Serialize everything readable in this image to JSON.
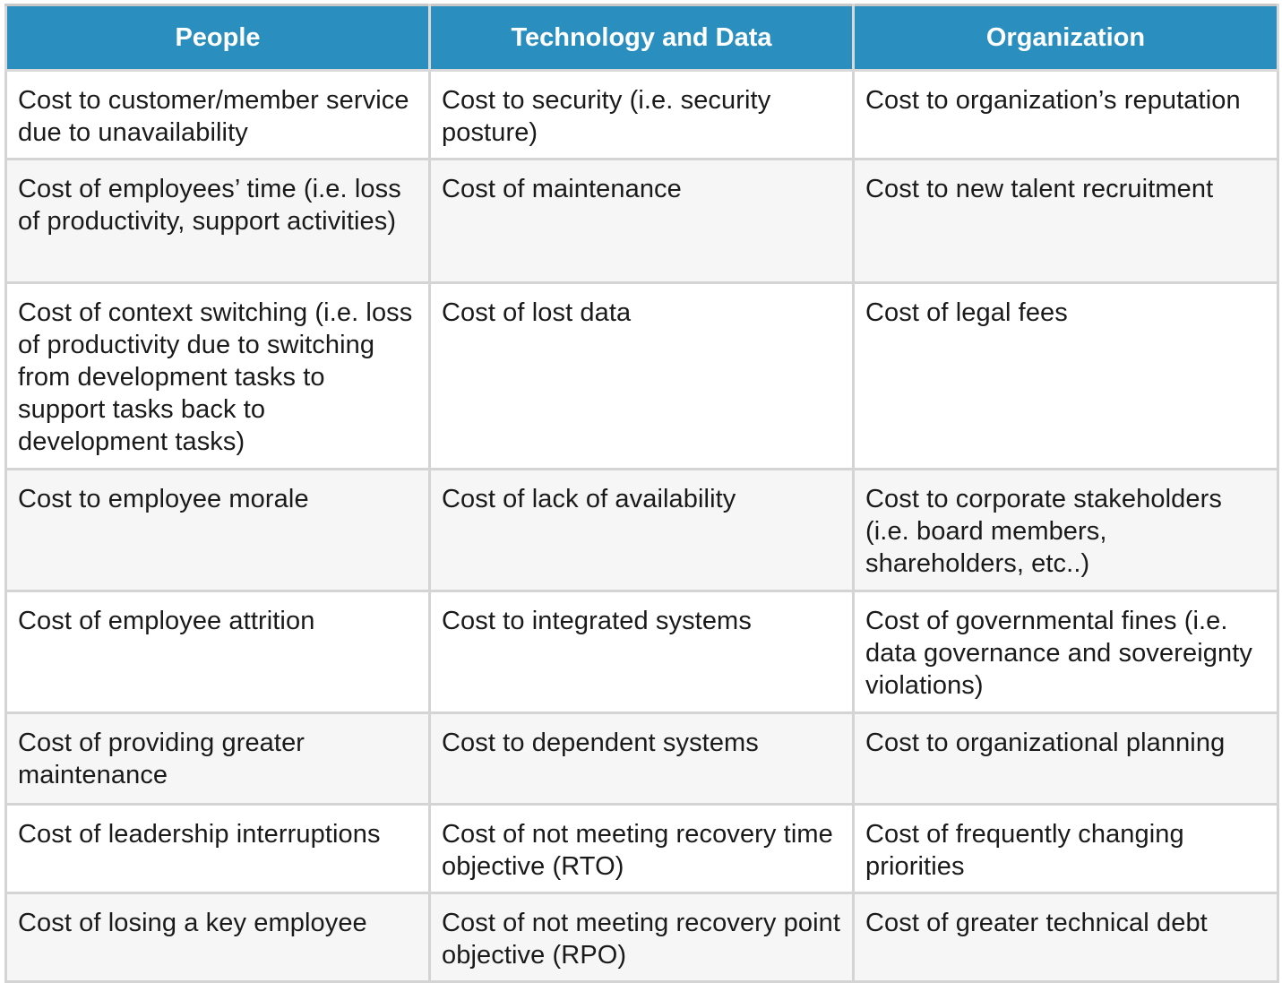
{
  "table": {
    "headers": [
      "People",
      "Technology and Data",
      "Organization"
    ],
    "rows": [
      [
        "Cost to customer/member service due to unavailability",
        "Cost to security (i.e. security posture)",
        "Cost to organization’s reputation"
      ],
      [
        "Cost of employees’ time (i.e. loss of productivity, support activities)",
        "Cost of maintenance",
        "Cost to new talent recruitment"
      ],
      [
        "Cost of context switching (i.e. loss of productivity due to switching from development tasks to support tasks back to development tasks)",
        "Cost of lost data",
        "Cost of legal fees"
      ],
      [
        "Cost to employee morale",
        "Cost of lack of availability",
        "Cost to corporate stakeholders (i.e. board members, shareholders, etc..)"
      ],
      [
        "Cost of employee attrition",
        "Cost to integrated systems",
        "Cost of governmental fines (i.e. data governance and sovereignty violations)"
      ],
      [
        "Cost of providing greater maintenance",
        "Cost to dependent systems",
        "Cost to organizational planning"
      ],
      [
        "Cost of leadership interruptions",
        "Cost of not meeting recovery time objective (RTO)",
        "Cost of frequently changing priorities"
      ],
      [
        "Cost of losing a key employee",
        "Cost of not meeting recovery point objective (RPO)",
        "Cost of greater technical debt"
      ]
    ]
  },
  "colors": {
    "header_bg": "#2a8fbf",
    "header_text": "#ffffff",
    "border": "#d4d4d4",
    "row_alt_bg": "#f6f6f6"
  }
}
